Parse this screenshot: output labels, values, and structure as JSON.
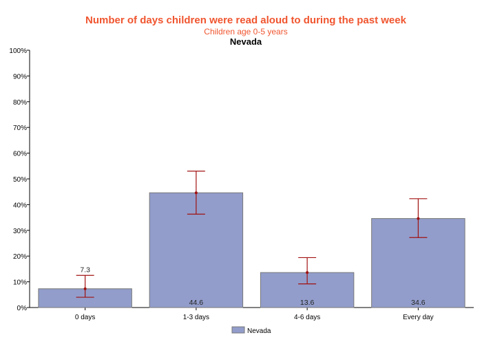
{
  "chart_data": {
    "type": "bar",
    "title": "Number of days children were read aloud to during the past week",
    "subtitle": "Children age 0-5 years",
    "state": "Nevada",
    "categories": [
      "0 days",
      "1-3 days",
      "4-6 days",
      "Every day"
    ],
    "series": [
      {
        "name": "Nevada",
        "values": [
          7.3,
          44.6,
          13.6,
          34.6
        ],
        "ci_lower": [
          4.0,
          36.3,
          9.2,
          27.2
        ],
        "ci_upper": [
          12.5,
          53.0,
          19.4,
          42.3
        ],
        "value_labels": [
          "7.3",
          "44.6",
          "13.6",
          "34.6"
        ]
      }
    ],
    "yticks": [
      "0%",
      "10%",
      "20%",
      "30%",
      "40%",
      "50%",
      "60%",
      "70%",
      "80%",
      "90%",
      "100%"
    ],
    "ylim": [
      0,
      100
    ],
    "grid": false,
    "legend_position": "bottom",
    "colors": {
      "bar": "#929dcb",
      "bar_border": "#777777",
      "error_bar": "#a01010",
      "title": "#f0552f"
    }
  }
}
